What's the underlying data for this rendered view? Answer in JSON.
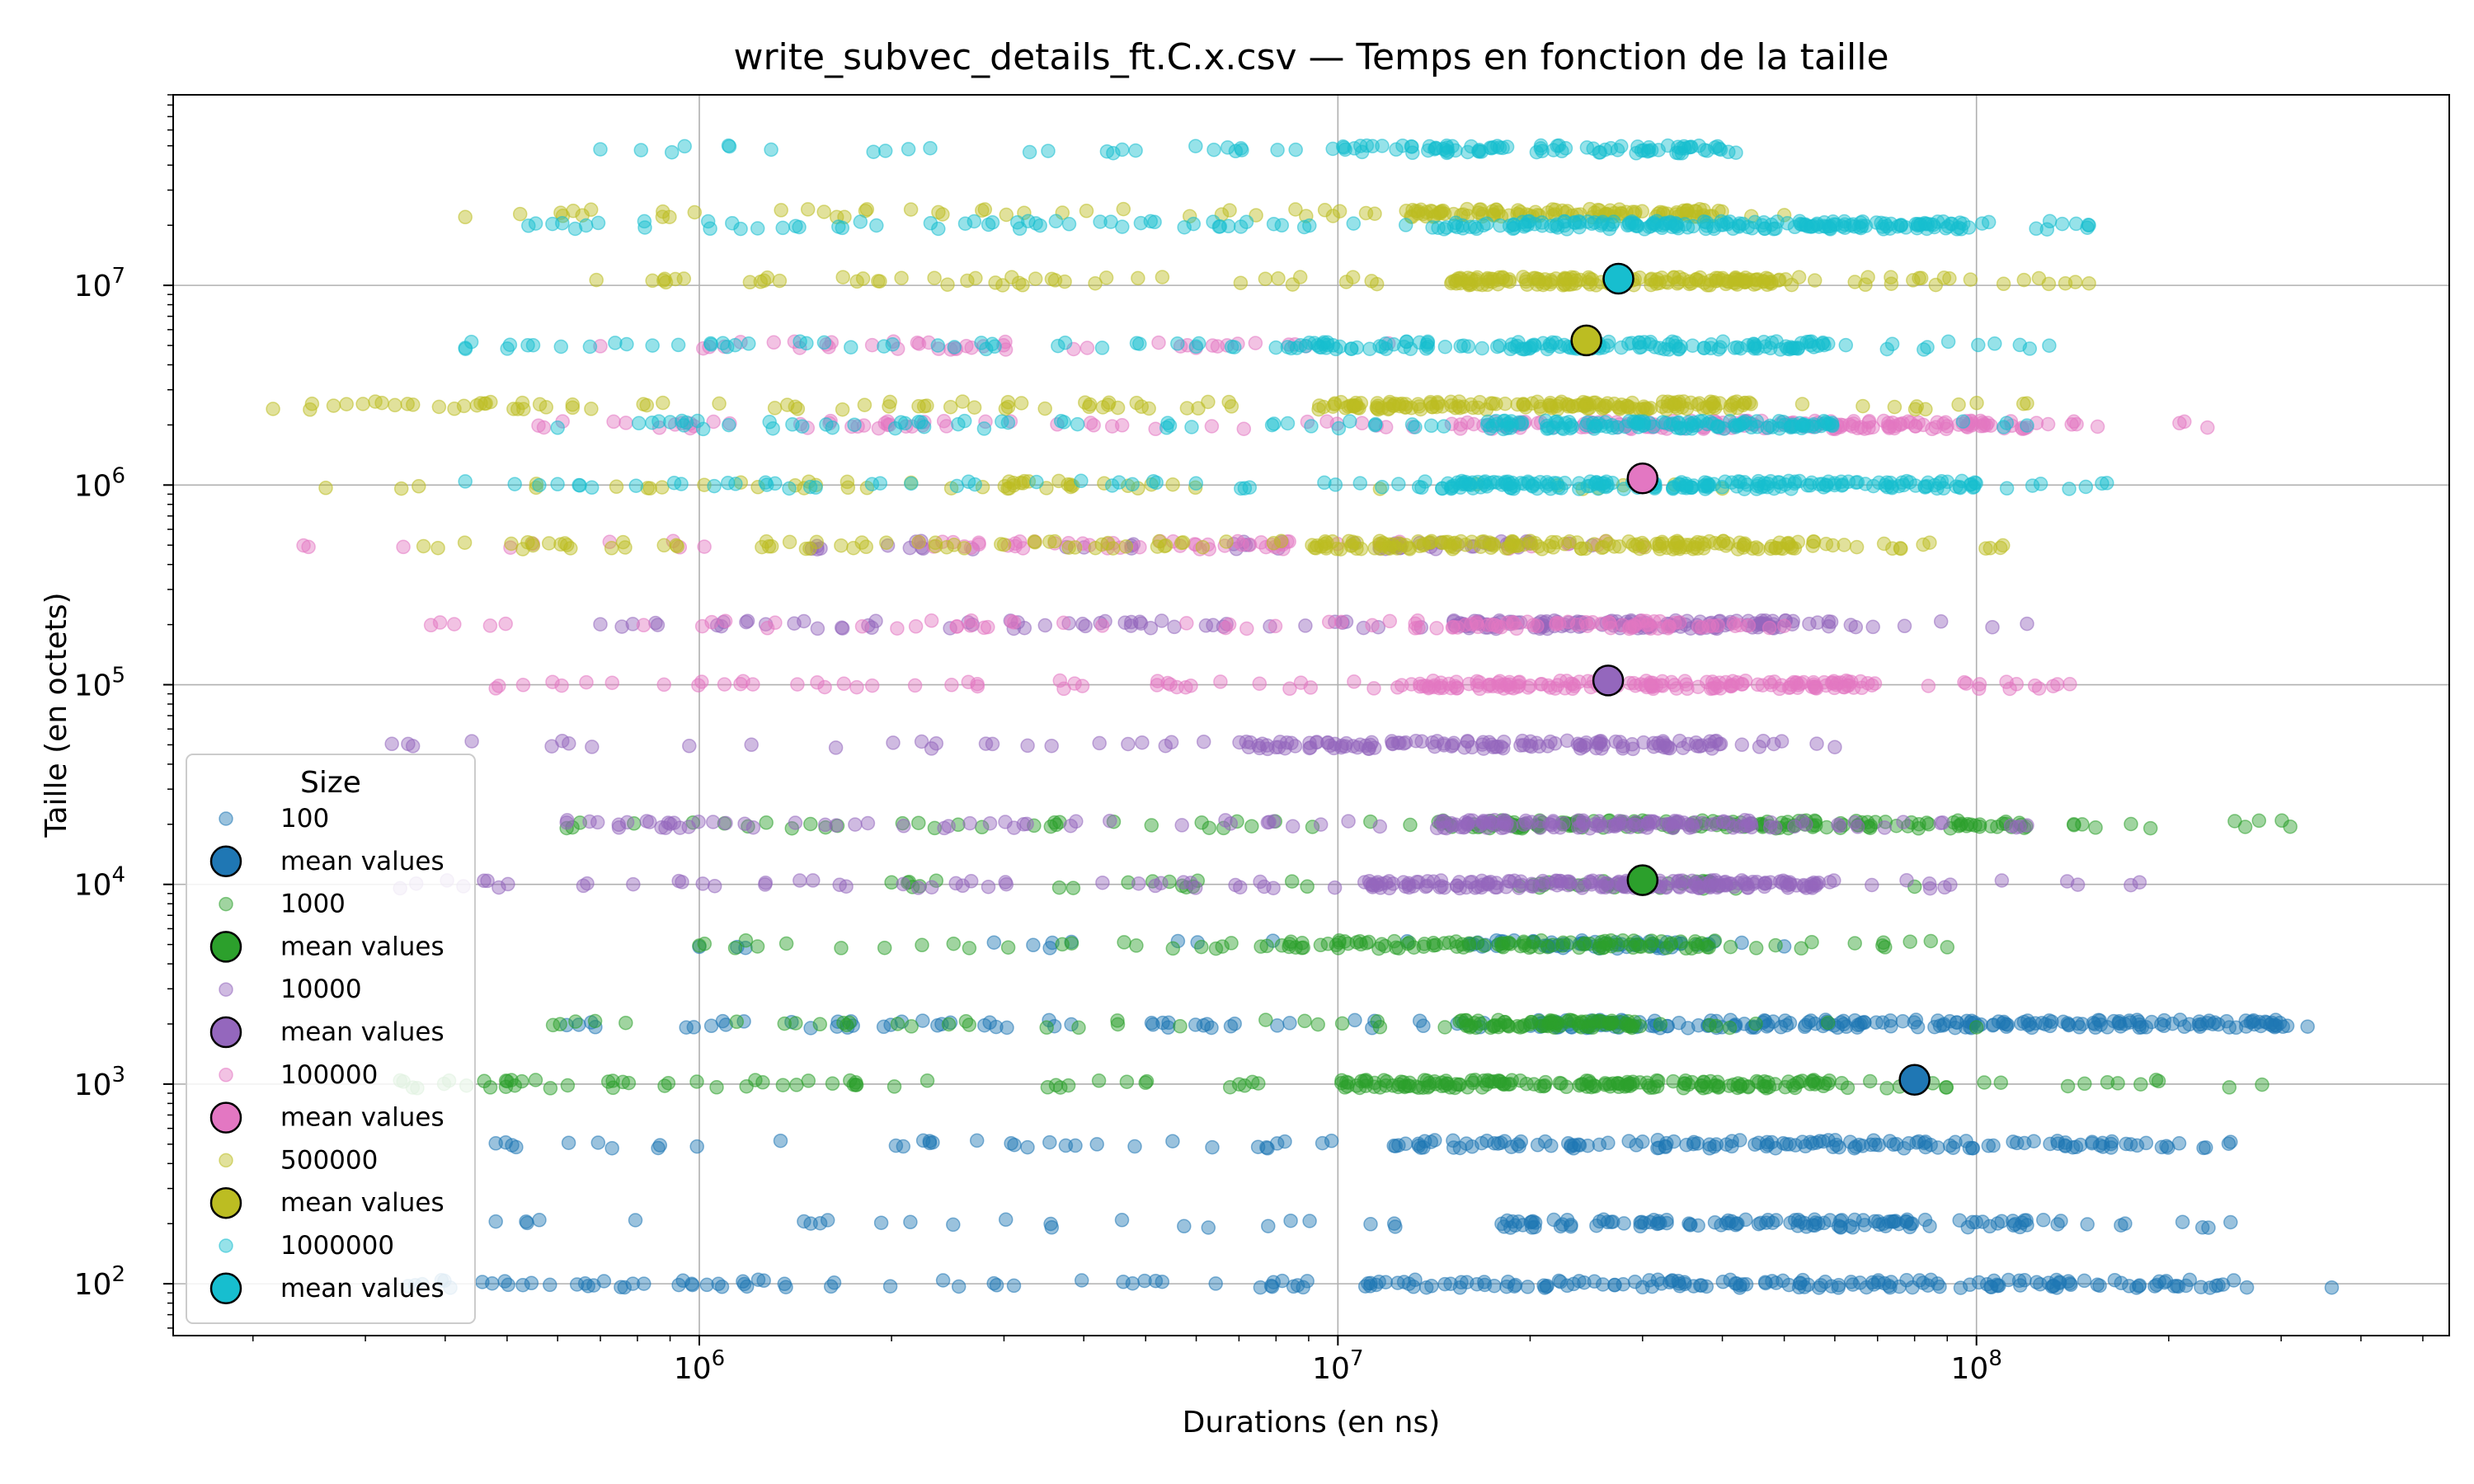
{
  "chart_data": {
    "type": "scatter",
    "title": "write_subvec_details_ft.C.x.csv — Temps en fonction de la taille",
    "xlabel": "Durations (en ns)",
    "ylabel": "Taille (en octets)",
    "xscale": "log",
    "yscale": "log",
    "xlim": [
      150000,
      550000000
    ],
    "ylim": [
      55,
      90000000
    ],
    "x_ticks": [
      {
        "value": 1000000,
        "base": "10",
        "exp": "6"
      },
      {
        "value": 10000000,
        "base": "10",
        "exp": "7"
      },
      {
        "value": 100000000,
        "base": "10",
        "exp": "8"
      }
    ],
    "y_ticks": [
      {
        "value": 100,
        "base": "10",
        "exp": "2"
      },
      {
        "value": 1000,
        "base": "10",
        "exp": "3"
      },
      {
        "value": 10000,
        "base": "10",
        "exp": "4"
      },
      {
        "value": 100000,
        "base": "10",
        "exp": "5"
      },
      {
        "value": 1000000,
        "base": "10",
        "exp": "6"
      },
      {
        "value": 10000000,
        "base": "10",
        "exp": "7"
      }
    ],
    "grid": true,
    "legend": {
      "title": "Size",
      "placement": "lower-left"
    },
    "series": [
      {
        "name": "100",
        "mean_label": "mean values",
        "color": "#1f77b4",
        "mean": {
          "x": 80000000,
          "y": 1050
        },
        "bands": [
          {
            "y": 100,
            "xmin": 350000,
            "xmax": 360000000,
            "dense_min": 11000000,
            "dense_max": 270000000,
            "n": 220
          },
          {
            "y": 200,
            "xmin": 480000,
            "xmax": 250000000,
            "dense_min": 18000000,
            "dense_max": 120000000,
            "n": 150
          },
          {
            "y": 500,
            "xmin": 480000,
            "xmax": 250000000,
            "dense_min": 12000000,
            "dense_max": 200000000,
            "n": 180
          },
          {
            "y": 2000,
            "xmin": 620000,
            "xmax": 330000000,
            "dense_min": 20000000,
            "dense_max": 320000000,
            "n": 260
          },
          {
            "y": 5000,
            "xmin": 1000000,
            "xmax": 50000000,
            "dense_min": 16000000,
            "dense_max": 40000000,
            "n": 70
          }
        ]
      },
      {
        "name": "1000",
        "mean_label": "mean values",
        "color": "#2ca02c",
        "mean": {
          "x": 30000000,
          "y": 10500
        },
        "bands": [
          {
            "y": 1000,
            "xmin": 340000,
            "xmax": 280000000,
            "dense_min": 10000000,
            "dense_max": 60000000,
            "n": 240
          },
          {
            "y": 2000,
            "xmin": 590000,
            "xmax": 100000000,
            "dense_min": 15000000,
            "dense_max": 30000000,
            "n": 120
          },
          {
            "y": 5000,
            "xmin": 1000000,
            "xmax": 90000000,
            "dense_min": 8000000,
            "dense_max": 40000000,
            "n": 140
          },
          {
            "y": 20000,
            "xmin": 620000,
            "xmax": 310000000,
            "dense_min": 14000000,
            "dense_max": 120000000,
            "n": 200
          },
          {
            "y": 10000,
            "xmin": 2000000,
            "xmax": 80000000,
            "dense_min": 20000000,
            "dense_max": 45000000,
            "n": 50
          }
        ]
      },
      {
        "name": "10000",
        "mean_label": "mean values",
        "color": "#9467bd",
        "mean": {
          "x": 26500000,
          "y": 105000
        },
        "bands": [
          {
            "y": 10000,
            "xmin": 340000,
            "xmax": 180000000,
            "dense_min": 11000000,
            "dense_max": 60000000,
            "n": 240
          },
          {
            "y": 20000,
            "xmin": 620000,
            "xmax": 120000000,
            "dense_min": 14000000,
            "dense_max": 45000000,
            "n": 180
          },
          {
            "y": 50000,
            "xmin": 330000,
            "xmax": 60000000,
            "dense_min": 7000000,
            "dense_max": 40000000,
            "n": 160
          },
          {
            "y": 200000,
            "xmin": 700000,
            "xmax": 120000000,
            "dense_min": 15000000,
            "dense_max": 55000000,
            "n": 200
          },
          {
            "y": 500000,
            "xmin": 1500000,
            "xmax": 25000000,
            "dense_min": 10000000,
            "dense_max": 20000000,
            "n": 50
          }
        ]
      },
      {
        "name": "100000",
        "mean_label": "mean values",
        "color": "#e377c2",
        "mean": {
          "x": 30000000,
          "y": 1080000
        },
        "bands": [
          {
            "y": 100000,
            "xmin": 480000,
            "xmax": 140000000,
            "dense_min": 13000000,
            "dense_max": 70000000,
            "n": 220
          },
          {
            "y": 200000,
            "xmin": 380000,
            "xmax": 50000000,
            "dense_min": 15000000,
            "dense_max": 45000000,
            "n": 100
          },
          {
            "y": 500000,
            "xmin": 240000,
            "xmax": 30000000,
            "dense_min": 2000000,
            "dense_max": 10000000,
            "n": 60
          },
          {
            "y": 2000000,
            "xmin": 560000,
            "xmax": 230000000,
            "dense_min": 15000000,
            "dense_max": 120000000,
            "n": 220
          },
          {
            "y": 5000000,
            "xmin": 700000,
            "xmax": 12000000,
            "dense_min": 1000000,
            "dense_max": 9000000,
            "n": 40
          }
        ]
      },
      {
        "name": "500000",
        "mean_label": "mean values",
        "color": "#bcbd22",
        "mean": {
          "x": 24500000,
          "y": 5300000
        },
        "bands": [
          {
            "y": 500000,
            "xmin": 370000,
            "xmax": 110000000,
            "dense_min": 9000000,
            "dense_max": 60000000,
            "n": 240
          },
          {
            "y": 1000000,
            "xmin": 260000,
            "xmax": 40000000,
            "dense_min": 800000,
            "dense_max": 6000000,
            "n": 50
          },
          {
            "y": 2500000,
            "xmin": 215000,
            "xmax": 120000000,
            "dense_min": 9000000,
            "dense_max": 45000000,
            "n": 240
          },
          {
            "y": 10500000,
            "xmin": 690000,
            "xmax": 150000000,
            "dense_min": 15000000,
            "dense_max": 50000000,
            "n": 230
          },
          {
            "y": 23000000,
            "xmin": 430000,
            "xmax": 50000000,
            "dense_min": 13000000,
            "dense_max": 40000000,
            "n": 150
          }
        ]
      },
      {
        "name": "1000000",
        "mean_label": "mean values",
        "color": "#17becf",
        "mean": {
          "x": 27500000,
          "y": 10800000
        },
        "bands": [
          {
            "y": 1000000,
            "xmin": 430000,
            "xmax": 160000000,
            "dense_min": 14000000,
            "dense_max": 100000000,
            "n": 240
          },
          {
            "y": 2000000,
            "xmin": 600000,
            "xmax": 120000000,
            "dense_min": 17000000,
            "dense_max": 60000000,
            "n": 180
          },
          {
            "y": 5000000,
            "xmin": 430000,
            "xmax": 130000000,
            "dense_min": 9000000,
            "dense_max": 60000000,
            "n": 200
          },
          {
            "y": 20000000,
            "xmin": 540000,
            "xmax": 150000000,
            "dense_min": 14000000,
            "dense_max": 100000000,
            "n": 250
          },
          {
            "y": 48000000,
            "xmin": 700000,
            "xmax": 42000000,
            "dense_min": 10000000,
            "dense_max": 40000000,
            "n": 110
          }
        ]
      }
    ]
  }
}
